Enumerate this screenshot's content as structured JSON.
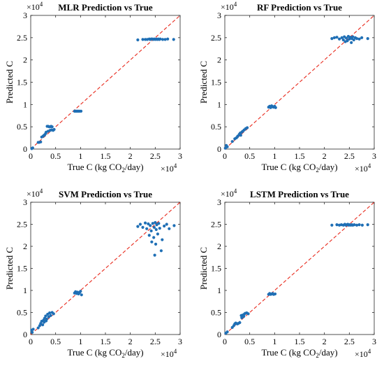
{
  "colors": {
    "points": "#1f6fb5",
    "reference_line": "#e8291c",
    "axes": "#262626"
  },
  "chart_data": [
    {
      "type": "scatter",
      "title": "MLR Prediction vs True",
      "xlabel_main": "True C (kg CO",
      "xlabel_sub": "2",
      "xlabel_tail": "/day)",
      "ylabel": "Predicted C",
      "exponent_base": "×10",
      "exponent_power": "4",
      "xlim": [
        0,
        30000
      ],
      "ylim": [
        0,
        30000
      ],
      "xticks": [
        "0",
        "0.5",
        "1",
        "1.5",
        "2",
        "2.5",
        "3"
      ],
      "yticks": [
        "0",
        "0.5",
        "1",
        "1.5",
        "2",
        "2.5",
        "3"
      ],
      "reference_line": "y = x",
      "points": [
        [
          200,
          100
        ],
        [
          400,
          250
        ],
        [
          1500,
          1500
        ],
        [
          1700,
          1500
        ],
        [
          2000,
          1600
        ],
        [
          2200,
          2700
        ],
        [
          2500,
          2900
        ],
        [
          2600,
          3000
        ],
        [
          2800,
          3200
        ],
        [
          3000,
          3500
        ],
        [
          3100,
          3800
        ],
        [
          3300,
          5100
        ],
        [
          3500,
          5100
        ],
        [
          3700,
          5000
        ],
        [
          3900,
          5000
        ],
        [
          4100,
          5100
        ],
        [
          4300,
          5000
        ],
        [
          3500,
          4000
        ],
        [
          3900,
          4200
        ],
        [
          4200,
          4300
        ],
        [
          4500,
          4200
        ],
        [
          4700,
          4400
        ],
        [
          8800,
          8500
        ],
        [
          9000,
          8500
        ],
        [
          9200,
          8500
        ],
        [
          9400,
          8500
        ],
        [
          9600,
          8500
        ],
        [
          9800,
          8500
        ],
        [
          10100,
          8500
        ],
        [
          21500,
          24500
        ],
        [
          22500,
          24600
        ],
        [
          23000,
          24600
        ],
        [
          23400,
          24600
        ],
        [
          23800,
          24700
        ],
        [
          24000,
          24600
        ],
        [
          24200,
          24700
        ],
        [
          24400,
          24700
        ],
        [
          24600,
          24600
        ],
        [
          24800,
          24700
        ],
        [
          25000,
          24600
        ],
        [
          25200,
          24700
        ],
        [
          25400,
          24600
        ],
        [
          25600,
          24700
        ],
        [
          25800,
          24600
        ],
        [
          26000,
          24700
        ],
        [
          26500,
          24600
        ],
        [
          27000,
          24600
        ],
        [
          27500,
          24700
        ],
        [
          28700,
          24600
        ]
      ]
    },
    {
      "type": "scatter",
      "title": "RF Prediction vs True",
      "xlabel_main": "True C (kg CO",
      "xlabel_sub": "2",
      "xlabel_tail": "/day)",
      "ylabel": "Predicted C",
      "exponent_base": "×10",
      "exponent_power": "4",
      "xlim": [
        0,
        30000
      ],
      "ylim": [
        0,
        30000
      ],
      "xticks": [
        "0",
        "0.5",
        "1",
        "1.5",
        "2",
        "2.5",
        "3"
      ],
      "yticks": [
        "0",
        "0.5",
        "1",
        "1.5",
        "2",
        "2.5",
        "3"
      ],
      "reference_line": "y = x",
      "points": [
        [
          100,
          200
        ],
        [
          300,
          800
        ],
        [
          500,
          500
        ],
        [
          1500,
          1700
        ],
        [
          2000,
          2300
        ],
        [
          2300,
          2500
        ],
        [
          2600,
          2900
        ],
        [
          2900,
          3300
        ],
        [
          3100,
          3600
        ],
        [
          3400,
          3800
        ],
        [
          3600,
          4000
        ],
        [
          3900,
          4300
        ],
        [
          4200,
          4600
        ],
        [
          4500,
          4800
        ],
        [
          3200,
          3100
        ],
        [
          2500,
          2700
        ],
        [
          8800,
          9400
        ],
        [
          9000,
          9600
        ],
        [
          9200,
          9300
        ],
        [
          9400,
          9700
        ],
        [
          9600,
          9500
        ],
        [
          9800,
          9400
        ],
        [
          10000,
          9600
        ],
        [
          10200,
          9300
        ],
        [
          21500,
          24800
        ],
        [
          22000,
          25000
        ],
        [
          22500,
          25100
        ],
        [
          23000,
          24700
        ],
        [
          23500,
          25000
        ],
        [
          23800,
          24500
        ],
        [
          24000,
          25200
        ],
        [
          24200,
          24100
        ],
        [
          24400,
          24900
        ],
        [
          24600,
          24300
        ],
        [
          24800,
          25300
        ],
        [
          25000,
          24700
        ],
        [
          25200,
          25100
        ],
        [
          25400,
          23900
        ],
        [
          25500,
          24800
        ],
        [
          25700,
          25200
        ],
        [
          25900,
          24500
        ],
        [
          26200,
          25000
        ],
        [
          26500,
          24800
        ],
        [
          27000,
          24700
        ],
        [
          27500,
          25000
        ],
        [
          28700,
          24800
        ]
      ]
    },
    {
      "type": "scatter",
      "title": "SVM Prediction vs True",
      "xlabel_main": "True C (kg CO",
      "xlabel_sub": "2",
      "xlabel_tail": "/day)",
      "ylabel": "Predicted C",
      "exponent_base": "×10",
      "exponent_power": "4",
      "xlim": [
        0,
        30000
      ],
      "ylim": [
        0,
        30000
      ],
      "xticks": [
        "0",
        "0.5",
        "1",
        "1.5",
        "2",
        "2.5",
        "3"
      ],
      "yticks": [
        "0",
        "0.5",
        "1",
        "1.5",
        "2",
        "2.5",
        "3"
      ],
      "reference_line": "y = x",
      "points": [
        [
          200,
          1000
        ],
        [
          300,
          500
        ],
        [
          500,
          1200
        ],
        [
          1500,
          1500
        ],
        [
          1800,
          2000
        ],
        [
          2000,
          2500
        ],
        [
          2200,
          3000
        ],
        [
          2400,
          2200
        ],
        [
          2600,
          3300
        ],
        [
          2800,
          3700
        ],
        [
          3000,
          4200
        ],
        [
          3200,
          3500
        ],
        [
          3400,
          4600
        ],
        [
          3600,
          4000
        ],
        [
          3800,
          4900
        ],
        [
          4000,
          4300
        ],
        [
          4300,
          5000
        ],
        [
          4600,
          4700
        ],
        [
          2700,
          2800
        ],
        [
          3100,
          3100
        ],
        [
          8800,
          9400
        ],
        [
          9000,
          9700
        ],
        [
          9200,
          9300
        ],
        [
          9400,
          9600
        ],
        [
          9600,
          9200
        ],
        [
          9800,
          9500
        ],
        [
          10000,
          9800
        ],
        [
          10200,
          9000
        ],
        [
          21500,
          24500
        ],
        [
          22000,
          25000
        ],
        [
          22500,
          24300
        ],
        [
          23000,
          25300
        ],
        [
          23300,
          24000
        ],
        [
          23600,
          25100
        ],
        [
          23800,
          22500
        ],
        [
          24000,
          24700
        ],
        [
          24200,
          23500
        ],
        [
          24300,
          21000
        ],
        [
          24500,
          25200
        ],
        [
          24700,
          22000
        ],
        [
          24800,
          24300
        ],
        [
          24900,
          18000
        ],
        [
          25000,
          25400
        ],
        [
          25100,
          20500
        ],
        [
          25200,
          23800
        ],
        [
          25300,
          24900
        ],
        [
          25500,
          22800
        ],
        [
          25700,
          25200
        ],
        [
          25900,
          24100
        ],
        [
          26200,
          19000
        ],
        [
          26400,
          21500
        ],
        [
          26800,
          24600
        ],
        [
          27300,
          25000
        ],
        [
          27800,
          24000
        ],
        [
          28800,
          24700
        ]
      ]
    },
    {
      "type": "scatter",
      "title": "LSTM Prediction vs True",
      "xlabel_main": "True C (kg CO",
      "xlabel_sub": "2",
      "xlabel_tail": "/day)",
      "ylabel": "Predicted C",
      "exponent_base": "×10",
      "exponent_power": "4",
      "xlim": [
        0,
        30000
      ],
      "ylim": [
        0,
        30000
      ],
      "xticks": [
        "0",
        "0.5",
        "1",
        "1.5",
        "2",
        "2.5",
        "3"
      ],
      "yticks": [
        "0",
        "0.5",
        "1",
        "1.5",
        "2",
        "2.5",
        "3"
      ],
      "reference_line": "y = x",
      "points": [
        [
          200,
          300
        ],
        [
          500,
          600
        ],
        [
          1500,
          1600
        ],
        [
          1800,
          2000
        ],
        [
          2000,
          2400
        ],
        [
          2200,
          2600
        ],
        [
          2500,
          2400
        ],
        [
          2700,
          2500
        ],
        [
          3000,
          2700
        ],
        [
          3300,
          4300
        ],
        [
          3600,
          4400
        ],
        [
          3900,
          4600
        ],
        [
          4100,
          4800
        ],
        [
          4400,
          4900
        ],
        [
          4700,
          4700
        ],
        [
          3400,
          3800
        ],
        [
          3800,
          4100
        ],
        [
          8800,
          9100
        ],
        [
          9000,
          9300
        ],
        [
          9200,
          9100
        ],
        [
          9400,
          9200
        ],
        [
          9600,
          9300
        ],
        [
          9800,
          9100
        ],
        [
          10100,
          9200
        ],
        [
          21500,
          24800
        ],
        [
          22500,
          24900
        ],
        [
          23000,
          24800
        ],
        [
          23400,
          24900
        ],
        [
          23800,
          24800
        ],
        [
          24100,
          25000
        ],
        [
          24300,
          24800
        ],
        [
          24500,
          24900
        ],
        [
          24700,
          25000
        ],
        [
          24900,
          24800
        ],
        [
          25100,
          24900
        ],
        [
          25300,
          24800
        ],
        [
          25500,
          24900
        ],
        [
          25700,
          24800
        ],
        [
          26000,
          24900
        ],
        [
          26500,
          24800
        ],
        [
          27000,
          24900
        ],
        [
          27600,
          24800
        ],
        [
          28700,
          24900
        ]
      ]
    }
  ]
}
